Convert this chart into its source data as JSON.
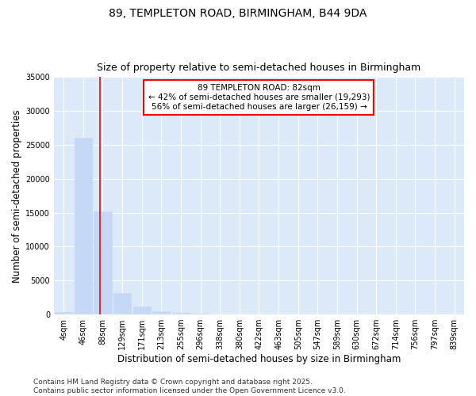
{
  "title_line1": "89, TEMPLETON ROAD, BIRMINGHAM, B44 9DA",
  "title_line2": "Size of property relative to semi-detached houses in Birmingham",
  "xlabel": "Distribution of semi-detached houses by size in Birmingham",
  "ylabel": "Number of semi-detached properties",
  "categories": [
    "4sqm",
    "46sqm",
    "88sqm",
    "129sqm",
    "171sqm",
    "213sqm",
    "255sqm",
    "296sqm",
    "338sqm",
    "380sqm",
    "422sqm",
    "463sqm",
    "505sqm",
    "547sqm",
    "589sqm",
    "630sqm",
    "672sqm",
    "714sqm",
    "756sqm",
    "797sqm",
    "839sqm"
  ],
  "values": [
    350,
    26100,
    15200,
    3200,
    1200,
    500,
    300,
    100,
    0,
    0,
    0,
    0,
    0,
    0,
    0,
    0,
    0,
    0,
    0,
    0,
    0
  ],
  "bar_color": "#c5d8f5",
  "bar_edge_color": "#c5d8f5",
  "smaller_pct": 42,
  "smaller_count": 19293,
  "larger_pct": 56,
  "larger_count": 26159,
  "vline_color": "red",
  "ylim": [
    0,
    35000
  ],
  "yticks": [
    0,
    5000,
    10000,
    15000,
    20000,
    25000,
    30000,
    35000
  ],
  "bg_color": "#ffffff",
  "plot_bg_color": "#dce9f8",
  "grid_color": "white",
  "footnote": "Contains HM Land Registry data © Crown copyright and database right 2025.\nContains public sector information licensed under the Open Government Licence v3.0.",
  "title_fontsize": 10,
  "subtitle_fontsize": 9,
  "axis_label_fontsize": 8.5,
  "tick_fontsize": 7,
  "footnote_fontsize": 6.5,
  "annot_fontsize": 7.5
}
